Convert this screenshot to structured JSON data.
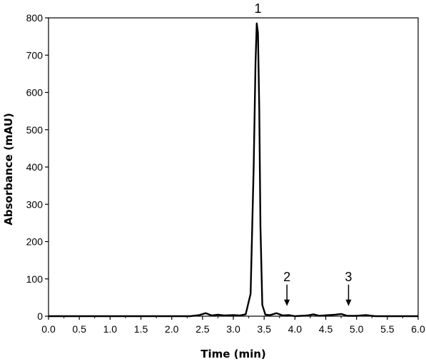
{
  "chart_data": {
    "type": "line",
    "title": "",
    "xlabel": "Time (min)",
    "ylabel": "Absorbance (mAU)",
    "xlim": [
      0.0,
      6.0
    ],
    "ylim": [
      0,
      800
    ],
    "xticks": [
      "0.0",
      "0.5",
      "1.0",
      "1.5",
      "2.0",
      "2.5",
      "3.0",
      "3.5",
      "4.0",
      "4.5",
      "5.0",
      "5.5",
      "6.0"
    ],
    "yticks": [
      "0",
      "100",
      "200",
      "300",
      "400",
      "500",
      "600",
      "700",
      "800"
    ],
    "grid": false,
    "series": [
      {
        "color": "#000000",
        "x": [
          0.0,
          2.3,
          2.45,
          2.55,
          2.65,
          2.75,
          2.85,
          3.0,
          3.1,
          3.2,
          3.28,
          3.33,
          3.36,
          3.38,
          3.4,
          3.42,
          3.44,
          3.47,
          3.52,
          3.6,
          3.7,
          3.8,
          3.9,
          4.0,
          4.2,
          4.3,
          4.4,
          4.55,
          4.65,
          4.75,
          4.85,
          5.0,
          5.15,
          5.3,
          6.0
        ],
        "y": [
          0,
          0,
          3,
          8,
          2,
          4,
          2,
          3,
          2,
          5,
          60,
          400,
          680,
          785,
          760,
          560,
          240,
          30,
          4,
          3,
          8,
          2,
          3,
          0,
          2,
          5,
          1,
          3,
          4,
          6,
          1,
          1,
          3,
          0,
          0
        ]
      }
    ],
    "annotations": [
      {
        "text": "1",
        "x": 3.4,
        "y": 800,
        "arrow": false
      },
      {
        "text": "2",
        "x": 3.87,
        "y": 100,
        "arrow": true
      },
      {
        "text": "3",
        "x": 4.87,
        "y": 100,
        "arrow": true
      }
    ]
  }
}
